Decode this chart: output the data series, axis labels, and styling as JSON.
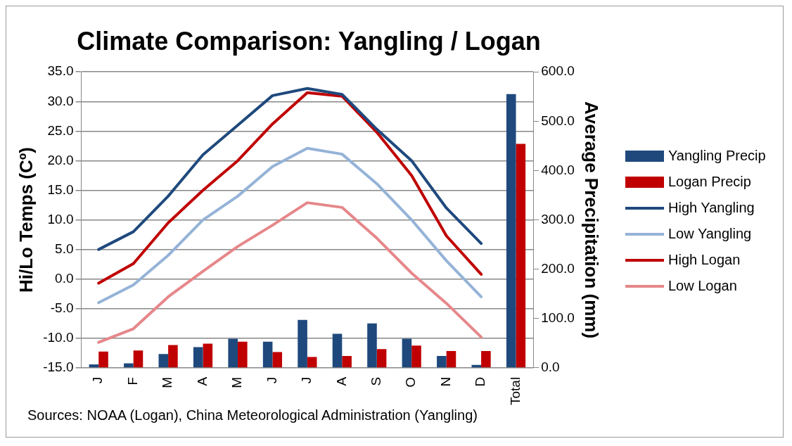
{
  "chart_data": {
    "type": "bar",
    "title": "Climate Comparison: Yangling / Logan",
    "ylabel": "Hi/Lo Temps (Cº)",
    "y2label": "Average Precipitation (mm)",
    "categories": [
      "J",
      "F",
      "M",
      "A",
      "M",
      "J",
      "J",
      "A",
      "S",
      "O",
      "N",
      "D",
      "Total"
    ],
    "series": [
      {
        "name": "Yangling Precip",
        "axis": "y2",
        "color": "#1f497d",
        "values": [
          7,
          9,
          28,
          42,
          59,
          53,
          97,
          69,
          90,
          59,
          24,
          6,
          555
        ]
      },
      {
        "name": "Logan Precip",
        "axis": "y2",
        "color": "#c00000",
        "values": [
          33,
          35,
          46,
          49,
          53,
          32,
          22,
          24,
          38,
          45,
          34,
          34,
          454
        ]
      },
      {
        "name": "High Yangling",
        "type": "line",
        "axis": "y",
        "color": "#1f497d",
        "values": [
          5,
          8,
          14,
          21,
          26,
          31,
          32.2,
          31.2,
          25.3,
          20,
          12,
          6,
          null
        ]
      },
      {
        "name": "Low Yangling",
        "type": "line",
        "axis": "y",
        "color": "#95b3d7",
        "values": [
          -4,
          -1,
          4,
          10,
          14,
          19,
          22.1,
          21.1,
          16.1,
          10,
          3.1,
          -3,
          null
        ]
      },
      {
        "name": "High Logan",
        "type": "line",
        "axis": "y",
        "color": "#c00000",
        "values": [
          -0.7,
          2.6,
          9.5,
          15,
          20,
          26.2,
          31.5,
          30.9,
          24.8,
          17.5,
          7.3,
          0.8,
          null
        ]
      },
      {
        "name": "Low Logan",
        "type": "line",
        "axis": "y",
        "color": "#e6878a",
        "values": [
          -10.7,
          -8.4,
          -3,
          1.3,
          5.5,
          9.1,
          12.9,
          12.1,
          6.9,
          1,
          -4.1,
          -9.8,
          null
        ]
      }
    ],
    "ylim": [
      -15,
      35
    ],
    "yticks": [
      {
        "value": -15,
        "label": "-15.0"
      },
      {
        "value": -10,
        "label": "-10.0"
      },
      {
        "value": -5,
        "label": "-5.0"
      },
      {
        "value": 0,
        "label": "0.0"
      },
      {
        "value": 5,
        "label": "5.0"
      },
      {
        "value": 10,
        "label": "10.0"
      },
      {
        "value": 15,
        "label": "15.0"
      },
      {
        "value": 20,
        "label": "20.0"
      },
      {
        "value": 25,
        "label": "25.0"
      },
      {
        "value": 30,
        "label": "30.0"
      },
      {
        "value": 35,
        "label": "35.0"
      }
    ],
    "y2lim": [
      0,
      600
    ],
    "y2ticks": [
      {
        "value": 0,
        "label": "0.0"
      },
      {
        "value": 100,
        "label": "100.0"
      },
      {
        "value": 200,
        "label": "200.0"
      },
      {
        "value": 300,
        "label": "300.0"
      },
      {
        "value": 400,
        "label": "400.0"
      },
      {
        "value": 500,
        "label": "500.0"
      },
      {
        "value": 600,
        "label": "600.0"
      }
    ],
    "grid": "y",
    "legend": "right",
    "marker": "none",
    "line_style": "solid",
    "annotations": [
      "Sources: NOAA (Logan), China Meteorological Administration (Yangling)"
    ]
  }
}
